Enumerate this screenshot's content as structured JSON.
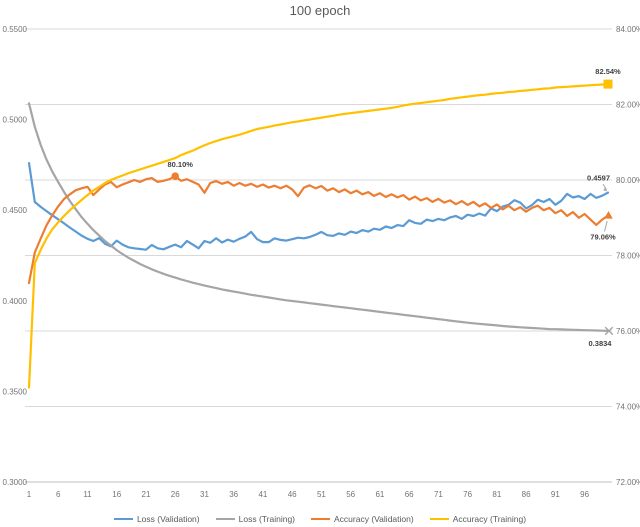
{
  "chart_data": {
    "type": "line",
    "title": "100 epoch",
    "x_ticks": [
      1,
      6,
      11,
      16,
      21,
      26,
      31,
      36,
      41,
      46,
      51,
      56,
      61,
      66,
      71,
      76,
      81,
      86,
      91,
      96
    ],
    "left_axis": {
      "min": 0.3,
      "max": 0.55,
      "tick_values": [
        0.55,
        0.5,
        0.45,
        0.4,
        0.35,
        0.3
      ],
      "tick_labels": [
        "0.5500",
        "0.5000",
        "0.4500",
        "0.4000",
        "0.3500",
        "0.3000"
      ]
    },
    "right_axis": {
      "min": 72,
      "max": 84,
      "tick_values": [
        84,
        82,
        80,
        78,
        76,
        74,
        72
      ],
      "tick_labels": [
        "84.00%",
        "82.00%",
        "80.00%",
        "78.00%",
        "76.00%",
        "74.00%",
        "72.00%"
      ]
    },
    "style": {
      "grid_color": "#D9D9D9",
      "axis_line_color": "#BFBFBF",
      "axis_text_color": "#737373",
      "title_color": "#595959",
      "data_label_color": "#404040",
      "leader_color": "#A6A6A6"
    },
    "series": [
      {
        "name": "Loss (Validation)",
        "axis": "left",
        "color": "#5B9BD5",
        "values": [
          0.476,
          0.4545,
          0.4518,
          0.4495,
          0.4472,
          0.445,
          0.4427,
          0.4404,
          0.4382,
          0.436,
          0.4342,
          0.433,
          0.4346,
          0.4315,
          0.43,
          0.4332,
          0.431,
          0.4295,
          0.429,
          0.4286,
          0.4282,
          0.4308,
          0.429,
          0.4284,
          0.4298,
          0.431,
          0.4295,
          0.433,
          0.431,
          0.429,
          0.433,
          0.432,
          0.4345,
          0.4322,
          0.4338,
          0.4326,
          0.4342,
          0.4355,
          0.438,
          0.434,
          0.4324,
          0.4324,
          0.4345,
          0.4336,
          0.4332,
          0.434,
          0.4348,
          0.4345,
          0.4352,
          0.4365,
          0.438,
          0.4362,
          0.4358,
          0.4372,
          0.4364,
          0.4382,
          0.4374,
          0.439,
          0.4382,
          0.4398,
          0.4392,
          0.441,
          0.4402,
          0.4418,
          0.4412,
          0.4445,
          0.443,
          0.4425,
          0.4448,
          0.444,
          0.4452,
          0.4445,
          0.446,
          0.4468,
          0.4452,
          0.4475,
          0.4468,
          0.4482,
          0.447,
          0.451,
          0.4495,
          0.452,
          0.453,
          0.4555,
          0.4542,
          0.451,
          0.4528,
          0.4558,
          0.4545,
          0.4562,
          0.453,
          0.4552,
          0.459,
          0.457,
          0.4578,
          0.4562,
          0.459,
          0.4568,
          0.458,
          0.4597
        ]
      },
      {
        "name": "Loss (Training)",
        "axis": "left",
        "color": "#A5A5A5",
        "end_marker": "x",
        "values": [
          0.509,
          0.496,
          0.486,
          0.478,
          0.4712,
          0.4655,
          0.46,
          0.455,
          0.4505,
          0.4462,
          0.4425,
          0.439,
          0.436,
          0.433,
          0.4305,
          0.428,
          0.4258,
          0.4238,
          0.422,
          0.4203,
          0.4188,
          0.4174,
          0.4161,
          0.4149,
          0.4138,
          0.4128,
          0.4118,
          0.4109,
          0.41,
          0.4092,
          0.4084,
          0.4077,
          0.407,
          0.4063,
          0.4057,
          0.4051,
          0.4045,
          0.4039,
          0.4033,
          0.4028,
          0.4023,
          0.4018,
          0.4013,
          0.4008,
          0.4003,
          0.3999,
          0.3995,
          0.3991,
          0.3987,
          0.3983,
          0.3979,
          0.3975,
          0.3971,
          0.3967,
          0.3963,
          0.3959,
          0.3955,
          0.3951,
          0.3947,
          0.3943,
          0.3939,
          0.3935,
          0.3931,
          0.3927,
          0.3923,
          0.3919,
          0.3915,
          0.3911,
          0.3907,
          0.3903,
          0.3899,
          0.3895,
          0.3891,
          0.3887,
          0.3883,
          0.3879,
          0.3876,
          0.3873,
          0.387,
          0.3867,
          0.3864,
          0.3861,
          0.3858,
          0.3856,
          0.3854,
          0.3852,
          0.385,
          0.3848,
          0.3846,
          0.3844,
          0.3843,
          0.3842,
          0.3841,
          0.384,
          0.3839,
          0.3838,
          0.3837,
          0.3836,
          0.3835,
          0.3834
        ]
      },
      {
        "name": "Accuracy (Validation)",
        "axis": "right",
        "color": "#ED7D31",
        "end_marker": "triangle",
        "values": [
          77.27,
          78.08,
          78.45,
          78.8,
          79.07,
          79.3,
          79.5,
          79.62,
          79.73,
          79.78,
          79.82,
          79.6,
          79.75,
          79.88,
          79.95,
          79.81,
          79.88,
          79.94,
          80.0,
          79.95,
          80.02,
          80.05,
          79.95,
          79.98,
          80.02,
          80.1,
          79.98,
          80.02,
          79.95,
          79.88,
          79.66,
          79.92,
          79.97,
          79.9,
          79.95,
          79.85,
          79.92,
          79.85,
          79.9,
          79.82,
          79.88,
          79.8,
          79.85,
          79.78,
          79.85,
          79.75,
          79.57,
          79.8,
          79.86,
          79.78,
          79.84,
          79.72,
          79.78,
          79.68,
          79.75,
          79.65,
          79.72,
          79.62,
          79.68,
          79.58,
          79.65,
          79.55,
          79.62,
          79.54,
          79.6,
          79.48,
          79.56,
          79.46,
          79.52,
          79.42,
          79.5,
          79.4,
          79.46,
          79.36,
          79.44,
          79.34,
          79.42,
          79.3,
          79.38,
          79.26,
          79.35,
          79.22,
          79.32,
          79.2,
          79.28,
          79.16,
          79.26,
          79.32,
          79.2,
          79.26,
          79.12,
          79.2,
          79.05,
          79.15,
          79.0,
          79.1,
          78.95,
          78.81,
          78.95,
          79.06
        ]
      },
      {
        "name": "Accuracy (Training)",
        "axis": "right",
        "color": "#FFC000",
        "end_marker": "square",
        "values": [
          74.5,
          77.8,
          78.15,
          78.45,
          78.7,
          78.88,
          79.05,
          79.2,
          79.34,
          79.47,
          79.6,
          79.72,
          79.82,
          79.92,
          80.0,
          80.06,
          80.12,
          80.18,
          80.23,
          80.28,
          80.33,
          80.38,
          80.43,
          80.48,
          80.53,
          80.58,
          80.66,
          80.72,
          80.78,
          80.85,
          80.92,
          80.98,
          81.03,
          81.08,
          81.12,
          81.16,
          81.2,
          81.25,
          81.3,
          81.35,
          81.38,
          81.41,
          81.44,
          81.47,
          81.5,
          81.53,
          81.55,
          81.58,
          81.6,
          81.63,
          81.65,
          81.68,
          81.7,
          81.73,
          81.75,
          81.77,
          81.79,
          81.81,
          81.83,
          81.85,
          81.87,
          81.89,
          81.91,
          81.94,
          81.97,
          82.0,
          82.02,
          82.04,
          82.06,
          82.08,
          82.1,
          82.12,
          82.15,
          82.17,
          82.19,
          82.21,
          82.23,
          82.25,
          82.26,
          82.28,
          82.3,
          82.31,
          82.33,
          82.34,
          82.36,
          82.37,
          82.39,
          82.4,
          82.42,
          82.43,
          82.45,
          82.46,
          82.47,
          82.48,
          82.49,
          82.5,
          82.51,
          82.52,
          82.53,
          82.54
        ]
      }
    ],
    "annotations": [
      {
        "id": "val-acc-peak",
        "text": "80.10%",
        "series": 2,
        "epoch": 26,
        "marker": "circle"
      },
      {
        "id": "train-acc-end",
        "text": "82.54%",
        "series": 3,
        "epoch": 100
      },
      {
        "id": "val-loss-end",
        "text": "0.4597",
        "series": 0,
        "epoch": 100
      },
      {
        "id": "val-acc-end",
        "text": "79.06%",
        "series": 2,
        "epoch": 100
      },
      {
        "id": "train-loss-end",
        "text": "0.3834",
        "series": 1,
        "epoch": 100
      }
    ]
  }
}
